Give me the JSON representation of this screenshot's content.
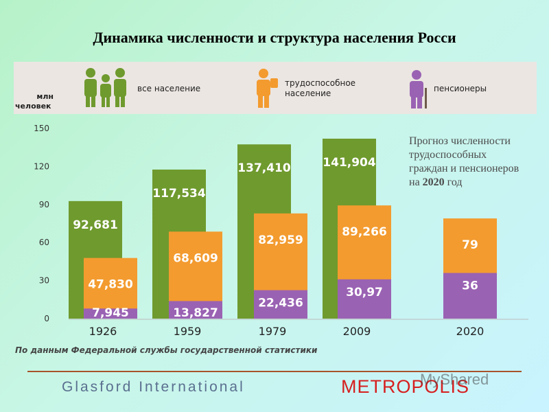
{
  "page": {
    "title": "Динамика численности и структура населения Росси"
  },
  "legend": {
    "unit_line1": "млн",
    "unit_line2": "человек",
    "items": [
      {
        "icon": "family-group-icon",
        "line1": "все население",
        "line2": "",
        "color": "#6f9a2e"
      },
      {
        "icon": "worker-icon",
        "line1": "трудоспособное",
        "line2": "население",
        "color": "#f39b2f"
      },
      {
        "icon": "pensioner-icon",
        "line1": "пенсионеры",
        "line2": "",
        "color": "#9a62b3"
      }
    ]
  },
  "forecast_note": {
    "line1": "Прогноз численности",
    "line2": "трудоспособных",
    "line3": "граждан и пенсионеров",
    "line4_prefix": "на ",
    "line4_year": "2020",
    "line4_suffix": " год"
  },
  "source": "По данным Федеральной службы государственной статистики",
  "footer": {
    "left": "Glasford International",
    "brand": "METROPOLIS",
    "watermark": "MyShared"
  },
  "chart_data": {
    "type": "bar",
    "categories": [
      "1926",
      "1959",
      "1979",
      "2009",
      "2020"
    ],
    "ylim": [
      0,
      150
    ],
    "yticks": [
      0,
      30,
      60,
      90,
      120,
      150
    ],
    "series": [
      {
        "name": "все население",
        "values": [
          92.681,
          117.534,
          137.41,
          141.904,
          null
        ],
        "labels": [
          "92,681",
          "117,534",
          "137,410",
          "141,904",
          ""
        ],
        "color": "#6f9a2e"
      },
      {
        "name": "трудоспособное население",
        "values": [
          47.83,
          68.609,
          82.959,
          89.266,
          79
        ],
        "labels": [
          "47,830",
          "68,609",
          "82,959",
          "89,266",
          "79"
        ],
        "color": "#f39b2f"
      },
      {
        "name": "пенсионеры",
        "values": [
          7.945,
          13.827,
          22.436,
          30.97,
          36
        ],
        "labels": [
          "7,945",
          "13,827",
          "22,436",
          "30,97",
          "36"
        ],
        "color": "#9a62b3"
      }
    ]
  }
}
